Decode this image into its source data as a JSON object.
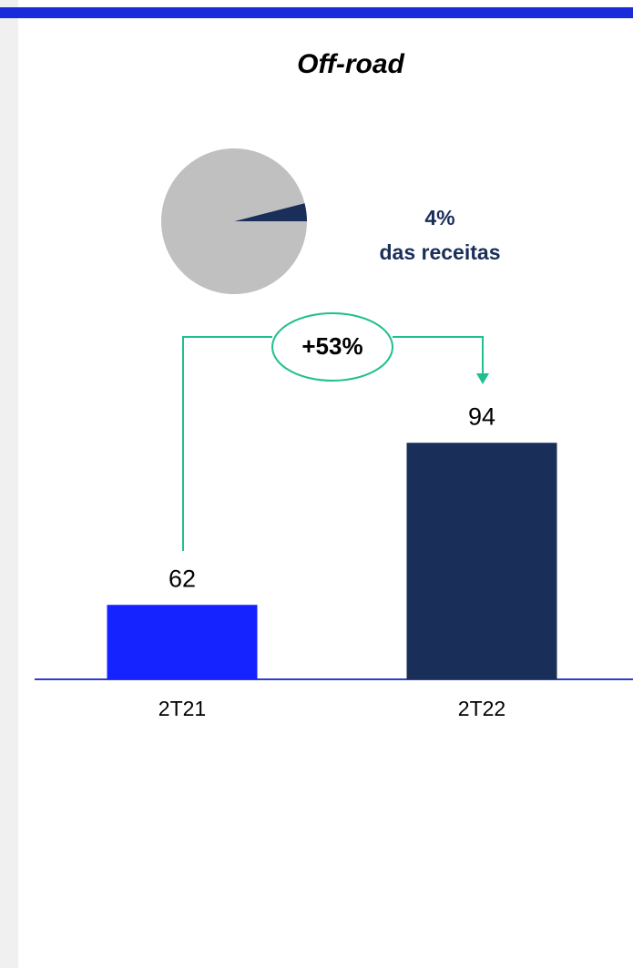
{
  "chart_data": [
    {
      "type": "pie",
      "values": [
        4,
        96
      ],
      "value_labels": [
        "4%",
        null
      ],
      "colors": [
        "#1a2e5a",
        "#c0c0c0"
      ],
      "annotation": "das receitas",
      "title": "Off-road"
    },
    {
      "type": "bar",
      "categories": [
        "2T21",
        "2T22"
      ],
      "values": [
        62,
        94
      ],
      "colors": [
        "#1423ff",
        "#1a2e5a"
      ],
      "ylim": [
        47.3,
        113.1
      ],
      "annotation": "+53%"
    }
  ]
}
